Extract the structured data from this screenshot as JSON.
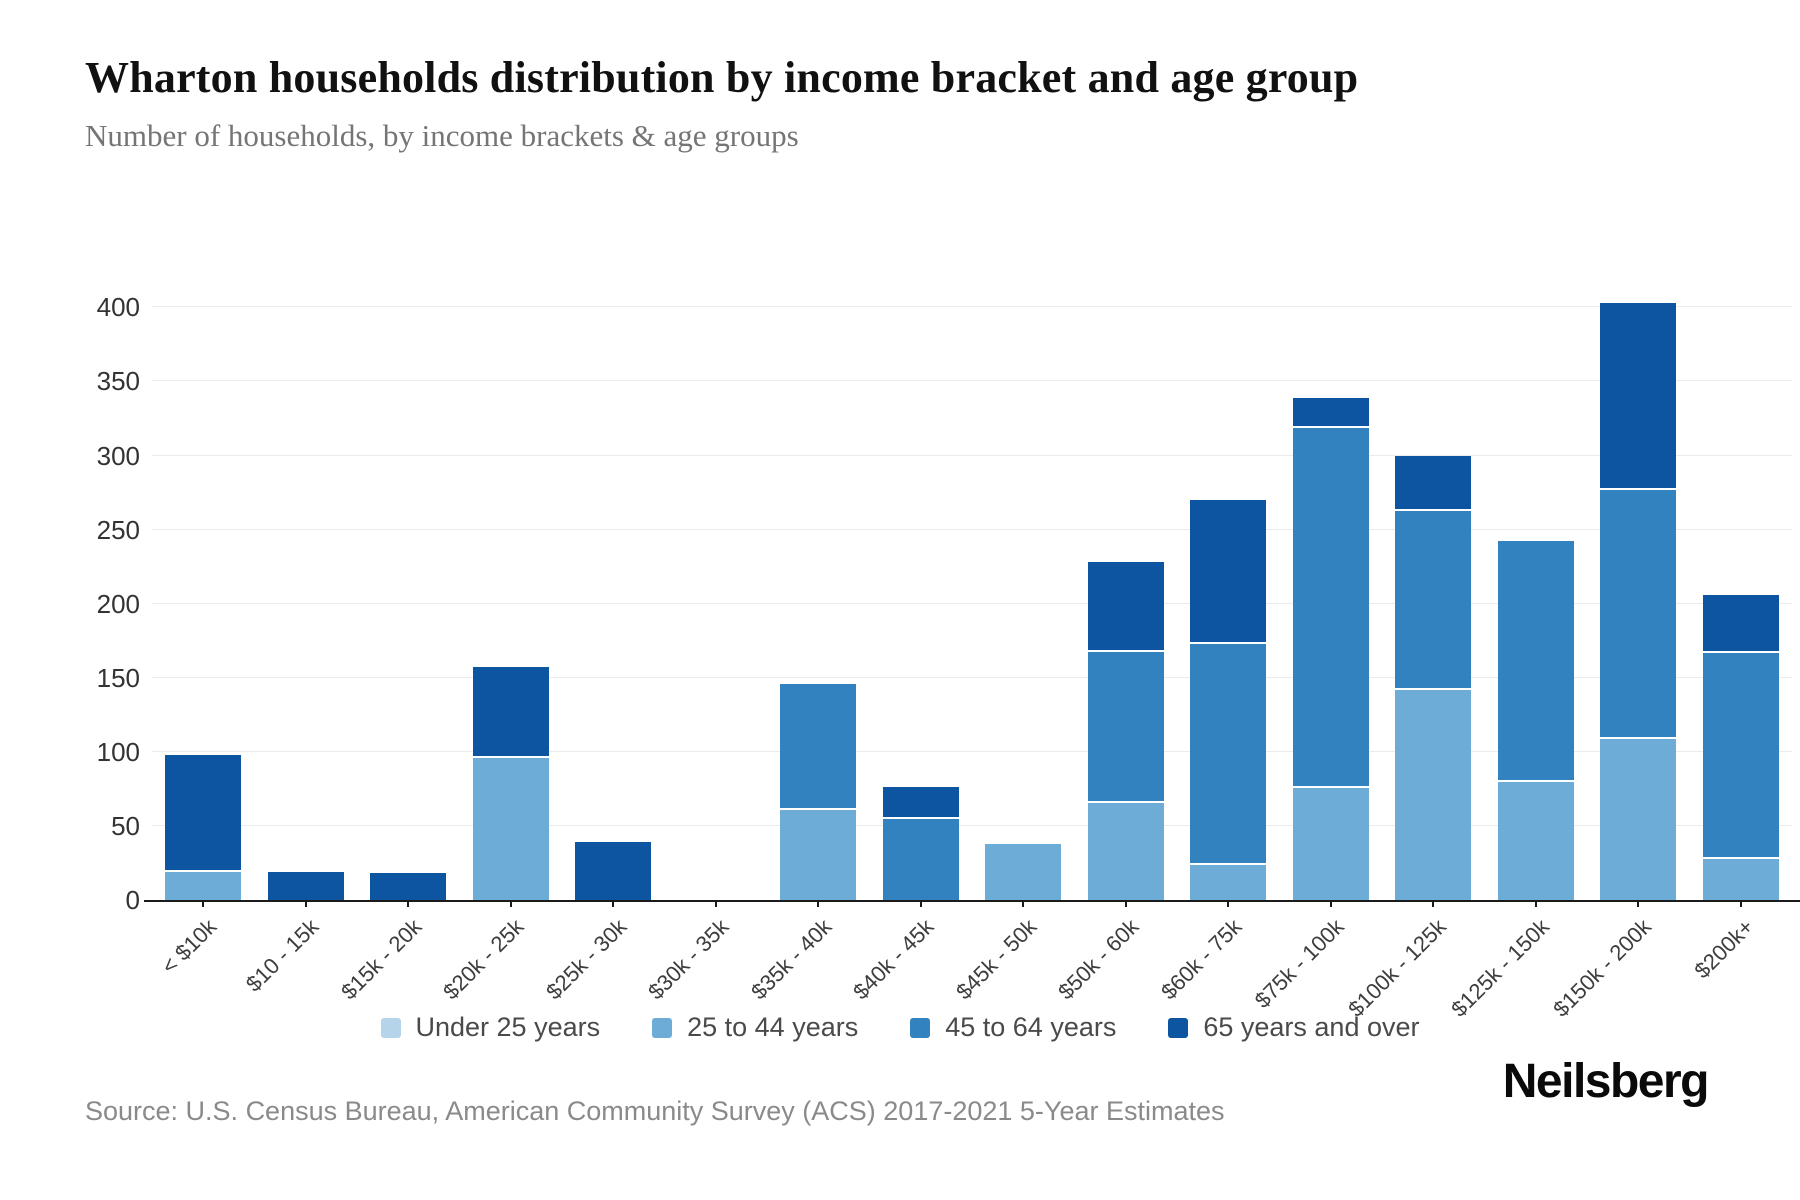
{
  "header": {
    "title": "Wharton households distribution by income bracket and age group",
    "subtitle": "Number of households, by income brackets & age groups"
  },
  "source": "Source: U.S. Census Bureau, American Community Survey (ACS) 2017-2021 5-Year Estimates",
  "brand": "Neilsberg",
  "chart_data": {
    "type": "bar",
    "stacked": true,
    "title": "Wharton households distribution by income bracket and age group",
    "subtitle": "Number of households, by income brackets & age groups",
    "xlabel": "",
    "ylabel": "Number of households",
    "categories": [
      "< $10k",
      "$10 - 15k",
      "$15k - 20k",
      "$20k - 25k",
      "$25k - 30k",
      "$30k - 35k",
      "$35k - 40k",
      "$40k - 45k",
      "$45k - 50k",
      "$50k - 60k",
      "$60k - 75k",
      "$75k - 100k",
      "$100k - 125k",
      "$125k - 150k",
      "$150k - 200k",
      "$200k+"
    ],
    "series": [
      {
        "name": "Under 25 years",
        "color": "#b5d4e9",
        "values": [
          0,
          0,
          0,
          0,
          0,
          0,
          0,
          0,
          0,
          0,
          0,
          0,
          0,
          0,
          0,
          0
        ]
      },
      {
        "name": "25 to 44 years",
        "color": "#6cacd6",
        "values": [
          20,
          0,
          0,
          97,
          0,
          0,
          62,
          0,
          38,
          67,
          25,
          77,
          143,
          81,
          110,
          29
        ]
      },
      {
        "name": "45 to 64 years",
        "color": "#3382c0",
        "values": [
          0,
          0,
          0,
          0,
          0,
          0,
          84,
          56,
          0,
          102,
          149,
          243,
          121,
          161,
          168,
          139
        ]
      },
      {
        "name": "65 years and over",
        "color": "#0d55a1",
        "values": [
          78,
          19,
          18,
          60,
          39,
          0,
          0,
          20,
          0,
          59,
          96,
          19,
          36,
          0,
          125,
          38
        ]
      }
    ],
    "totals": [
      98,
      19,
      18,
      157,
      39,
      0,
      146,
      76,
      38,
      228,
      270,
      339,
      300,
      242,
      403,
      206
    ],
    "yticks": [
      0,
      50,
      100,
      150,
      200,
      250,
      300,
      350,
      400
    ],
    "ylim": [
      0,
      432
    ],
    "grid": true,
    "legend_position": "bottom"
  }
}
